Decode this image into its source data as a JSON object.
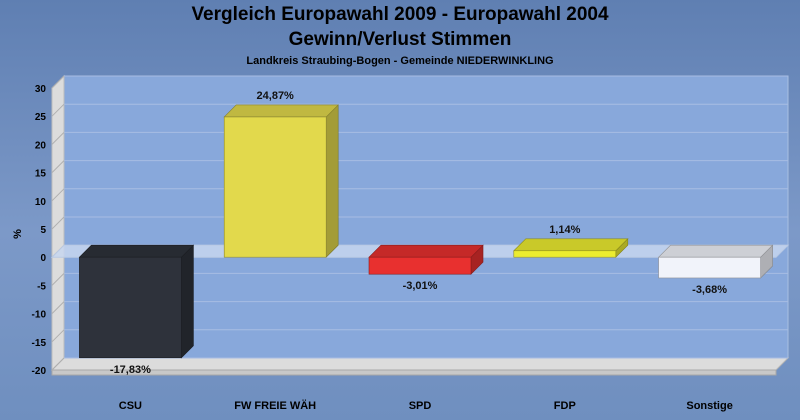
{
  "chart_data": {
    "type": "bar",
    "title": "Vergleich Europawahl 2009 - Europawahl 2004",
    "subtitle": "Gewinn/Verlust Stimmen",
    "subtitle2": "Landkreis Straubing-Bogen - Gemeinde NIEDERWINKLING",
    "ylabel": "%",
    "xlabel": "",
    "ylim": [
      -20,
      30
    ],
    "yticks": [
      "30",
      "25",
      "20",
      "15",
      "10",
      "5",
      "0",
      "-5",
      "-10",
      "-15",
      "-20"
    ],
    "categories": [
      "CSU",
      "FW FREIE WÄH",
      "SPD",
      "FDP",
      "Sonstige"
    ],
    "values": [
      -17.83,
      24.87,
      -3.01,
      1.14,
      -3.68
    ],
    "value_labels": [
      "-17,83%",
      "24,87%",
      "-3,01%",
      "1,14%",
      "-3,68%"
    ],
    "colors": [
      "#2e323b",
      "#e2d94c",
      "#e8302f",
      "#ecec30",
      "#f1f3fa"
    ],
    "grid": true,
    "legend": "none"
  }
}
